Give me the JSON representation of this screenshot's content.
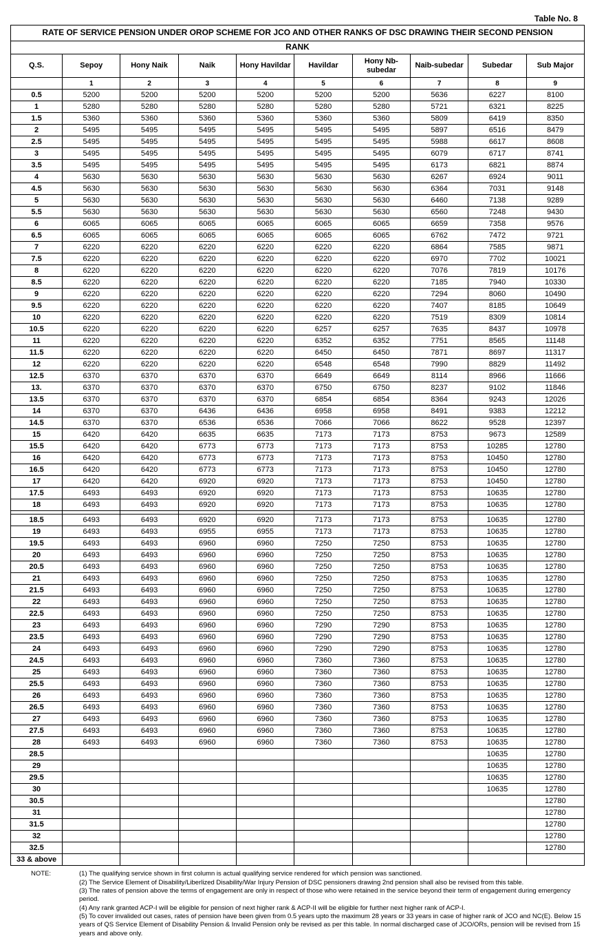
{
  "tableNo": "Table No. 8",
  "title": "RATE OF SERVICE PENSION UNDER OROP SCHEME FOR JCO AND OTHER RANKS OF DSC DRAWING THEIR SECOND PENSION",
  "rankHeader": "RANK",
  "qsHeader": "Q.S.",
  "columns": [
    "Sepoy",
    "Hony Naik",
    "Naik",
    "Hony Havildar",
    "Havildar",
    "Hony Nb-subedar",
    "Naib-subedar",
    "Subedar",
    "Sub Major"
  ],
  "colIndex": [
    "1",
    "2",
    "3",
    "4",
    "5",
    "6",
    "7",
    "8",
    "9"
  ],
  "rows": [
    {
      "qs": "0.5",
      "v": [
        "5200",
        "5200",
        "5200",
        "5200",
        "5200",
        "5200",
        "5636",
        "6227",
        "8100"
      ]
    },
    {
      "qs": "1",
      "v": [
        "5280",
        "5280",
        "5280",
        "5280",
        "5280",
        "5280",
        "5721",
        "6321",
        "8225"
      ]
    },
    {
      "qs": "1.5",
      "v": [
        "5360",
        "5360",
        "5360",
        "5360",
        "5360",
        "5360",
        "5809",
        "6419",
        "8350"
      ]
    },
    {
      "qs": "2",
      "v": [
        "5495",
        "5495",
        "5495",
        "5495",
        "5495",
        "5495",
        "5897",
        "6516",
        "8479"
      ]
    },
    {
      "qs": "2.5",
      "v": [
        "5495",
        "5495",
        "5495",
        "5495",
        "5495",
        "5495",
        "5988",
        "6617",
        "8608"
      ]
    },
    {
      "qs": "3",
      "v": [
        "5495",
        "5495",
        "5495",
        "5495",
        "5495",
        "5495",
        "6079",
        "6717",
        "8741"
      ]
    },
    {
      "qs": "3.5",
      "v": [
        "5495",
        "5495",
        "5495",
        "5495",
        "5495",
        "5495",
        "6173",
        "6821",
        "8874"
      ]
    },
    {
      "qs": "4",
      "v": [
        "5630",
        "5630",
        "5630",
        "5630",
        "5630",
        "5630",
        "6267",
        "6924",
        "9011"
      ]
    },
    {
      "qs": "4.5",
      "v": [
        "5630",
        "5630",
        "5630",
        "5630",
        "5630",
        "5630",
        "6364",
        "7031",
        "9148"
      ]
    },
    {
      "qs": "5",
      "v": [
        "5630",
        "5630",
        "5630",
        "5630",
        "5630",
        "5630",
        "6460",
        "7138",
        "9289"
      ]
    },
    {
      "qs": "5.5",
      "v": [
        "5630",
        "5630",
        "5630",
        "5630",
        "5630",
        "5630",
        "6560",
        "7248",
        "9430"
      ]
    },
    {
      "qs": "6",
      "v": [
        "6065",
        "6065",
        "6065",
        "6065",
        "6065",
        "6065",
        "6659",
        "7358",
        "9576"
      ]
    },
    {
      "qs": "6.5",
      "v": [
        "6065",
        "6065",
        "6065",
        "6065",
        "6065",
        "6065",
        "6762",
        "7472",
        "9721"
      ]
    },
    {
      "qs": "7",
      "v": [
        "6220",
        "6220",
        "6220",
        "6220",
        "6220",
        "6220",
        "6864",
        "7585",
        "9871"
      ]
    },
    {
      "qs": "7.5",
      "v": [
        "6220",
        "6220",
        "6220",
        "6220",
        "6220",
        "6220",
        "6970",
        "7702",
        "10021"
      ]
    },
    {
      "qs": "8",
      "v": [
        "6220",
        "6220",
        "6220",
        "6220",
        "6220",
        "6220",
        "7076",
        "7819",
        "10176"
      ]
    },
    {
      "qs": "8.5",
      "v": [
        "6220",
        "6220",
        "6220",
        "6220",
        "6220",
        "6220",
        "7185",
        "7940",
        "10330"
      ]
    },
    {
      "qs": "9",
      "v": [
        "6220",
        "6220",
        "6220",
        "6220",
        "6220",
        "6220",
        "7294",
        "8060",
        "10490"
      ]
    },
    {
      "qs": "9.5",
      "v": [
        "6220",
        "6220",
        "6220",
        "6220",
        "6220",
        "6220",
        "7407",
        "8185",
        "10649"
      ]
    },
    {
      "qs": "10",
      "v": [
        "6220",
        "6220",
        "6220",
        "6220",
        "6220",
        "6220",
        "7519",
        "8309",
        "10814"
      ]
    },
    {
      "qs": "10.5",
      "v": [
        "6220",
        "6220",
        "6220",
        "6220",
        "6257",
        "6257",
        "7635",
        "8437",
        "10978"
      ]
    },
    {
      "qs": "11",
      "v": [
        "6220",
        "6220",
        "6220",
        "6220",
        "6352",
        "6352",
        "7751",
        "8565",
        "11148"
      ]
    },
    {
      "qs": "11.5",
      "v": [
        "6220",
        "6220",
        "6220",
        "6220",
        "6450",
        "6450",
        "7871",
        "8697",
        "11317"
      ]
    },
    {
      "qs": "12",
      "v": [
        "6220",
        "6220",
        "6220",
        "6220",
        "6548",
        "6548",
        "7990",
        "8829",
        "11492"
      ]
    },
    {
      "qs": "12.5",
      "v": [
        "6370",
        "6370",
        "6370",
        "6370",
        "6649",
        "6649",
        "8114",
        "8966",
        "11666"
      ]
    },
    {
      "qs": "13.",
      "v": [
        "6370",
        "6370",
        "6370",
        "6370",
        "6750",
        "6750",
        "8237",
        "9102",
        "11846"
      ]
    },
    {
      "qs": "13.5",
      "v": [
        "6370",
        "6370",
        "6370",
        "6370",
        "6854",
        "6854",
        "8364",
        "9243",
        "12026"
      ]
    },
    {
      "qs": "14",
      "v": [
        "6370",
        "6370",
        "6436",
        "6436",
        "6958",
        "6958",
        "8491",
        "9383",
        "12212"
      ]
    },
    {
      "qs": "14.5",
      "v": [
        "6370",
        "6370",
        "6536",
        "6536",
        "7066",
        "7066",
        "8622",
        "9528",
        "12397"
      ]
    },
    {
      "qs": "15",
      "v": [
        "6420",
        "6420",
        "6635",
        "6635",
        "7173",
        "7173",
        "8753",
        "9673",
        "12589"
      ]
    },
    {
      "qs": "15.5",
      "v": [
        "6420",
        "6420",
        "6773",
        "6773",
        "7173",
        "7173",
        "8753",
        "10285",
        "12780"
      ]
    },
    {
      "qs": "16",
      "v": [
        "6420",
        "6420",
        "6773",
        "6773",
        "7173",
        "7173",
        "8753",
        "10450",
        "12780"
      ]
    },
    {
      "qs": "16.5",
      "v": [
        "6420",
        "6420",
        "6773",
        "6773",
        "7173",
        "7173",
        "8753",
        "10450",
        "12780"
      ]
    },
    {
      "qs": "17",
      "v": [
        "6420",
        "6420",
        "6920",
        "6920",
        "7173",
        "7173",
        "8753",
        "10450",
        "12780"
      ]
    },
    {
      "qs": "17.5",
      "v": [
        "6493",
        "6493",
        "6920",
        "6920",
        "7173",
        "7173",
        "8753",
        "10635",
        "12780"
      ]
    },
    {
      "qs": "18",
      "v": [
        "6493",
        "6493",
        "6920",
        "6920",
        "7173",
        "7173",
        "8753",
        "10635",
        "12780"
      ]
    }
  ],
  "rows2": [
    {
      "qs": "18.5",
      "v": [
        "6493",
        "6493",
        "6920",
        "6920",
        "7173",
        "7173",
        "8753",
        "10635",
        "12780"
      ]
    },
    {
      "qs": "19",
      "v": [
        "6493",
        "6493",
        "6955",
        "6955",
        "7173",
        "7173",
        "8753",
        "10635",
        "12780"
      ]
    },
    {
      "qs": "19.5",
      "v": [
        "6493",
        "6493",
        "6960",
        "6960",
        "7250",
        "7250",
        "8753",
        "10635",
        "12780"
      ]
    },
    {
      "qs": "20",
      "v": [
        "6493",
        "6493",
        "6960",
        "6960",
        "7250",
        "7250",
        "8753",
        "10635",
        "12780"
      ]
    },
    {
      "qs": "20.5",
      "v": [
        "6493",
        "6493",
        "6960",
        "6960",
        "7250",
        "7250",
        "8753",
        "10635",
        "12780"
      ]
    },
    {
      "qs": "21",
      "v": [
        "6493",
        "6493",
        "6960",
        "6960",
        "7250",
        "7250",
        "8753",
        "10635",
        "12780"
      ]
    },
    {
      "qs": "21.5",
      "v": [
        "6493",
        "6493",
        "6960",
        "6960",
        "7250",
        "7250",
        "8753",
        "10635",
        "12780"
      ]
    },
    {
      "qs": "22",
      "v": [
        "6493",
        "6493",
        "6960",
        "6960",
        "7250",
        "7250",
        "8753",
        "10635",
        "12780"
      ]
    },
    {
      "qs": "22.5",
      "v": [
        "6493",
        "6493",
        "6960",
        "6960",
        "7250",
        "7250",
        "8753",
        "10635",
        "12780"
      ]
    },
    {
      "qs": "23",
      "v": [
        "6493",
        "6493",
        "6960",
        "6960",
        "7290",
        "7290",
        "8753",
        "10635",
        "12780"
      ]
    },
    {
      "qs": "23.5",
      "v": [
        "6493",
        "6493",
        "6960",
        "6960",
        "7290",
        "7290",
        "8753",
        "10635",
        "12780"
      ]
    },
    {
      "qs": "24",
      "v": [
        "6493",
        "6493",
        "6960",
        "6960",
        "7290",
        "7290",
        "8753",
        "10635",
        "12780"
      ]
    },
    {
      "qs": "24.5",
      "v": [
        "6493",
        "6493",
        "6960",
        "6960",
        "7360",
        "7360",
        "8753",
        "10635",
        "12780"
      ]
    },
    {
      "qs": "25",
      "v": [
        "6493",
        "6493",
        "6960",
        "6960",
        "7360",
        "7360",
        "8753",
        "10635",
        "12780"
      ]
    },
    {
      "qs": "25.5",
      "v": [
        "6493",
        "6493",
        "6960",
        "6960",
        "7360",
        "7360",
        "8753",
        "10635",
        "12780"
      ]
    },
    {
      "qs": "26",
      "v": [
        "6493",
        "6493",
        "6960",
        "6960",
        "7360",
        "7360",
        "8753",
        "10635",
        "12780"
      ]
    },
    {
      "qs": "26.5",
      "v": [
        "6493",
        "6493",
        "6960",
        "6960",
        "7360",
        "7360",
        "8753",
        "10635",
        "12780"
      ]
    },
    {
      "qs": "27",
      "v": [
        "6493",
        "6493",
        "6960",
        "6960",
        "7360",
        "7360",
        "8753",
        "10635",
        "12780"
      ]
    },
    {
      "qs": "27.5",
      "v": [
        "6493",
        "6493",
        "6960",
        "6960",
        "7360",
        "7360",
        "8753",
        "10635",
        "12780"
      ]
    },
    {
      "qs": "28",
      "v": [
        "6493",
        "6493",
        "6960",
        "6960",
        "7360",
        "7360",
        "8753",
        "10635",
        "12780"
      ]
    },
    {
      "qs": "28.5",
      "v": [
        "",
        "",
        "",
        "",
        "",
        "",
        "",
        "10635",
        "12780"
      ]
    },
    {
      "qs": "29",
      "v": [
        "",
        "",
        "",
        "",
        "",
        "",
        "",
        "10635",
        "12780"
      ]
    },
    {
      "qs": "29.5",
      "v": [
        "",
        "",
        "",
        "",
        "",
        "",
        "",
        "10635",
        "12780"
      ]
    },
    {
      "qs": "30",
      "v": [
        "",
        "",
        "",
        "",
        "",
        "",
        "",
        "10635",
        "12780"
      ]
    },
    {
      "qs": "30.5",
      "v": [
        "",
        "",
        "",
        "",
        "",
        "",
        "",
        "",
        "12780"
      ]
    },
    {
      "qs": "31",
      "v": [
        "",
        "",
        "",
        "",
        "",
        "",
        "",
        "",
        "12780"
      ]
    },
    {
      "qs": "31.5",
      "v": [
        "",
        "",
        "",
        "",
        "",
        "",
        "",
        "",
        "12780"
      ]
    },
    {
      "qs": "32",
      "v": [
        "",
        "",
        "",
        "",
        "",
        "",
        "",
        "",
        "12780"
      ]
    },
    {
      "qs": "32.5",
      "v": [
        "",
        "",
        "",
        "",
        "",
        "",
        "",
        "",
        "12780"
      ]
    },
    {
      "qs": "33 & above",
      "v": [
        "",
        "",
        "",
        "",
        "",
        "",
        "",
        "",
        ""
      ]
    }
  ],
  "notesLabel": "NOTE:",
  "notes": [
    "(1) The qualifying service shown in first column is actual qualifying service rendered for which pension was sanctioned.",
    "(2) The Service Element of Disability/Liberlized Disability/War Injury Pension of DSC pensioners drawing 2nd pension shall also be revised from this table.",
    "(3) The rates of pension above the terms of engagement are only in respect of those who were retained in the service beyond their term of engagement during emergency period.",
    "(4) Any rank granted ACP-I will be eligible for pension of next higher rank &  ACP-II will be eligible for further next higher rank of ACP-I.",
    "(5) To cover invalided out cases, rates of pension have been given from 0.5 years upto the maximum 28 years or 33 years in case of higher rank of JCO and NC(E). Below 15 years of QS Service Element of Disability Pension & Invalid Pension only be revised as per this table. In normal discharged case of JCO/ORs, pension will be revised from 15 years and above only."
  ]
}
